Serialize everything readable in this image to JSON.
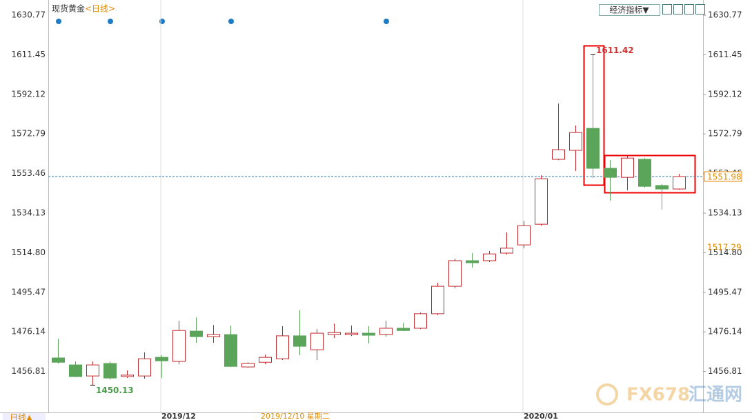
{
  "chart_data": {
    "type": "candlestick",
    "title": "现货黄金",
    "period": "<日线>",
    "indicator_button": "经济指标▼",
    "period_button": "日线▲",
    "cursor_label": "2019/12/10 星期二",
    "watermark": "FX678",
    "watermark_cn": "汇通网",
    "categories": [
      null,
      null,
      null,
      null,
      null,
      null,
      "2019/12",
      null,
      null,
      null,
      null,
      null,
      null,
      null,
      null,
      null,
      null,
      null,
      null,
      null,
      null,
      null,
      null,
      null,
      null,
      null,
      null,
      "2020/01",
      null,
      null,
      null,
      null,
      null,
      null,
      null,
      null,
      null
    ],
    "open": [
      1463.4,
      1460.0,
      1454.6,
      1460.7,
      1454.3,
      1454.6,
      1463.7,
      1461.7,
      1476.5,
      1473.8,
      1474.8,
      1459.0,
      1461.3,
      1463.0,
      1474.2,
      1467.4,
      1474.8,
      1474.8,
      1475.5,
      1474.8,
      1477.9,
      1477.9,
      1485.0,
      1498.4,
      1510.9,
      1510.9,
      1514.6,
      1518.6,
      1528.7,
      1560.4,
      1564.8,
      1575.5,
      1556.0,
      1551.6,
      1560.4,
      1547.6,
      1545.9
    ],
    "high": [
      1472.8,
      1461.7,
      1461.7,
      1461.7,
      1457.3,
      1466.1,
      1464.7,
      1481.5,
      1483.2,
      1479.5,
      1479.2,
      1461.3,
      1465.0,
      1478.9,
      1486.6,
      1477.5,
      1480.2,
      1479.2,
      1478.9,
      1481.5,
      1480.5,
      1485.6,
      1500.1,
      1511.9,
      1514.6,
      1515.6,
      1524.7,
      1530.4,
      1552.6,
      1587.7,
      1576.9,
      1611.42,
      1560.0,
      1562.1,
      1561.0,
      1548.3,
      1553.3
    ],
    "low": [
      1460.7,
      1454.0,
      1450.13,
      1452.9,
      1453.6,
      1453.3,
      1453.6,
      1460.3,
      1470.8,
      1470.8,
      1459.0,
      1458.7,
      1460.3,
      1462.4,
      1464.7,
      1462.4,
      1473.1,
      1474.1,
      1470.5,
      1473.8,
      1476.5,
      1477.5,
      1484.3,
      1497.4,
      1507.5,
      1510.2,
      1513.9,
      1516.9,
      1528.0,
      1560.0,
      1554.7,
      1551.3,
      1540.2,
      1545.2,
      1546.6,
      1535.8,
      1545.6
    ],
    "close": [
      1461.3,
      1454.3,
      1460.0,
      1453.6,
      1455.0,
      1463.0,
      1462.0,
      1476.8,
      1473.8,
      1474.8,
      1459.3,
      1460.7,
      1463.7,
      1474.2,
      1469.1,
      1475.5,
      1475.8,
      1475.5,
      1474.5,
      1477.9,
      1476.8,
      1485.0,
      1498.4,
      1510.9,
      1509.9,
      1514.2,
      1517.0,
      1528.0,
      1550.9,
      1565.1,
      1573.5,
      1556.0,
      1551.6,
      1561.0,
      1547.2,
      1545.9,
      1551.98
    ],
    "up_color": "#c0272d",
    "down_color": "#5aa55a",
    "last_price": 1551.98,
    "marker_price": 1517.29,
    "ylim": [
      1436.8,
      1638.2
    ],
    "yticks": [
      1630.77,
      1611.45,
      1592.12,
      1572.79,
      1553.46,
      1534.13,
      {
        "value": 1514.8,
        "label": "1514.80"
      },
      1495.47,
      1476.14,
      1456.81
    ]
  }
}
